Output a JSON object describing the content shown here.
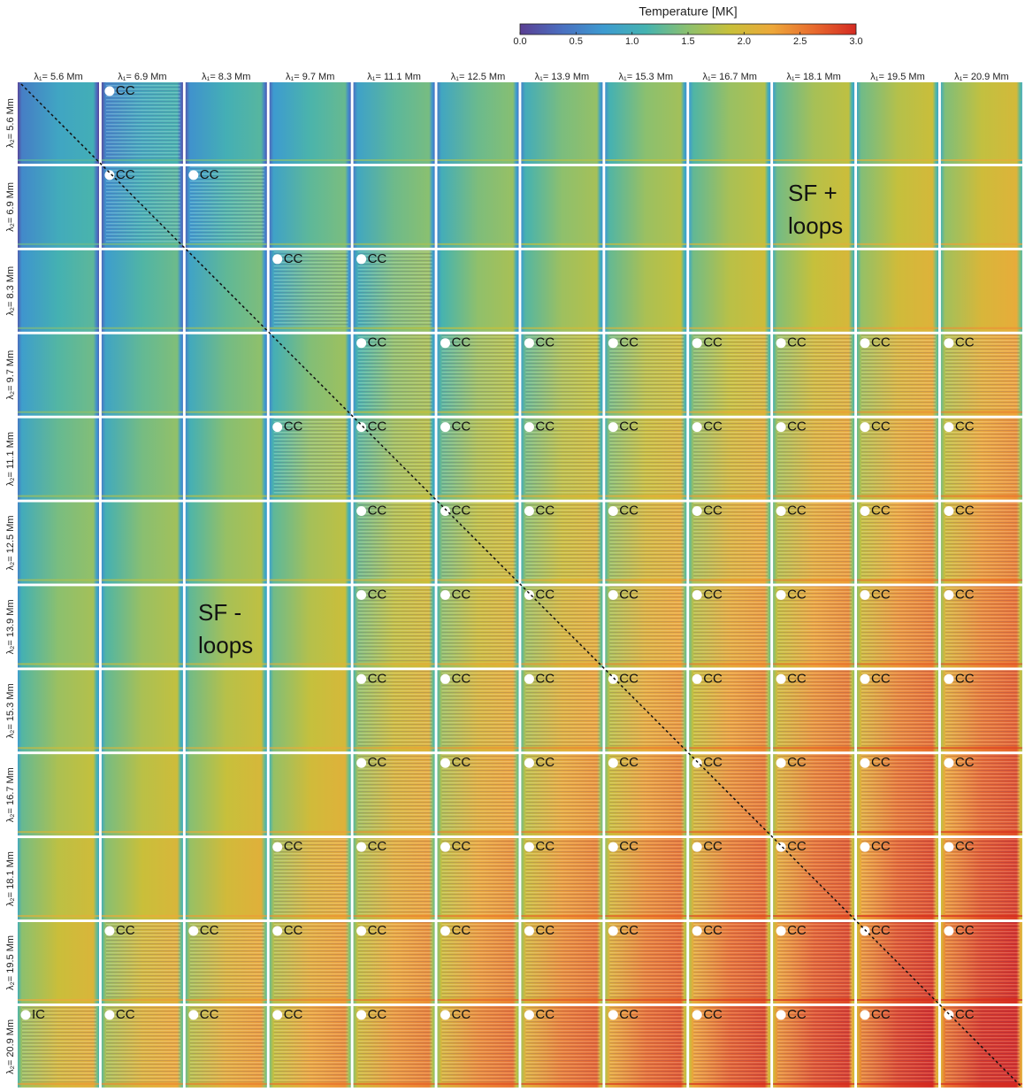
{
  "chart_data": {
    "type": "heatmap-grid",
    "colorbar": {
      "label": "Temperature [MK]",
      "clim": [
        0,
        3
      ],
      "ticks": [
        {
          "value": 0,
          "label": "0.0"
        },
        0.5,
        {
          "value": 1,
          "label": "1.0"
        },
        1.5,
        {
          "value": 2,
          "label": "2.0"
        },
        2.5,
        {
          "value": 3,
          "label": "3.0"
        }
      ],
      "colormap": [
        "#5a3f93",
        "#4a6fc0",
        "#3d9bd0",
        "#45b3b0",
        "#8cc06e",
        "#c8c03a",
        "#eda83a",
        "#e86a2e",
        "#d42a22"
      ]
    },
    "columns": [
      "λ₁= 5.6 Mm",
      "λ₁= 6.9 Mm",
      "λ₁= 8.3 Mm",
      "λ₁= 9.7 Mm",
      "λ₁= 11.1 Mm",
      "λ₁= 12.5 Mm",
      "λ₁= 13.9 Mm",
      "λ₁= 15.3 Mm",
      "λ₁= 16.7 Mm",
      "λ₁= 18.1 Mm",
      "λ₁= 19.5 Mm",
      "λ₁= 20.9 Mm"
    ],
    "rows": [
      "λ₂= 5.6 Mm",
      "λ₂= 6.9 Mm",
      "λ₂= 8.3 Mm",
      "λ₂= 9.7 Mm",
      "λ₂= 11.1 Mm",
      "λ₂= 12.5 Mm",
      "λ₂= 13.9 Mm",
      "λ₂= 15.3 Mm",
      "λ₂= 16.7 Mm",
      "λ₂= 18.1 Mm",
      "λ₂= 19.5 Mm",
      "λ₂= 20.9 Mm"
    ],
    "panel_labels": [
      [
        null,
        "CC",
        null,
        null,
        null,
        null,
        null,
        null,
        null,
        null,
        null,
        null
      ],
      [
        null,
        "CC",
        "CC",
        null,
        null,
        null,
        null,
        null,
        null,
        null,
        null,
        null
      ],
      [
        null,
        null,
        null,
        "CC",
        "CC",
        null,
        null,
        null,
        null,
        null,
        null,
        null
      ],
      [
        null,
        null,
        null,
        null,
        "CC",
        "CC",
        "CC",
        "CC",
        "CC",
        "CC",
        "CC",
        "CC"
      ],
      [
        null,
        null,
        null,
        "CC",
        "CC",
        "CC",
        "CC",
        "CC",
        "CC",
        "CC",
        "CC",
        "CC"
      ],
      [
        null,
        null,
        null,
        null,
        "CC",
        "CC",
        "CC",
        "CC",
        "CC",
        "CC",
        "CC",
        "CC"
      ],
      [
        null,
        null,
        null,
        null,
        "CC",
        "CC",
        "CC",
        "CC",
        "CC",
        "CC",
        "CC",
        "CC"
      ],
      [
        null,
        null,
        null,
        null,
        "CC",
        "CC",
        "CC",
        "CC",
        "CC",
        "CC",
        "CC",
        "CC"
      ],
      [
        null,
        null,
        null,
        null,
        "CC",
        "CC",
        "CC",
        "CC",
        "CC",
        "CC",
        "CC",
        "CC"
      ],
      [
        null,
        null,
        null,
        "CC",
        "CC",
        "CC",
        "CC",
        "CC",
        "CC",
        "CC",
        "CC",
        "CC"
      ],
      [
        null,
        "CC",
        "CC",
        "CC",
        "CC",
        "CC",
        "CC",
        "CC",
        "CC",
        "CC",
        "CC",
        "CC"
      ],
      [
        "IC",
        "CC",
        "CC",
        "CC",
        "CC",
        "CC",
        "CC",
        "CC",
        "CC",
        "CC",
        "CC",
        "CC"
      ]
    ],
    "annotations": [
      {
        "lines": [
          "SF +",
          "loops"
        ]
      },
      {
        "lines": [
          "SF -",
          "loops"
        ]
      }
    ]
  }
}
